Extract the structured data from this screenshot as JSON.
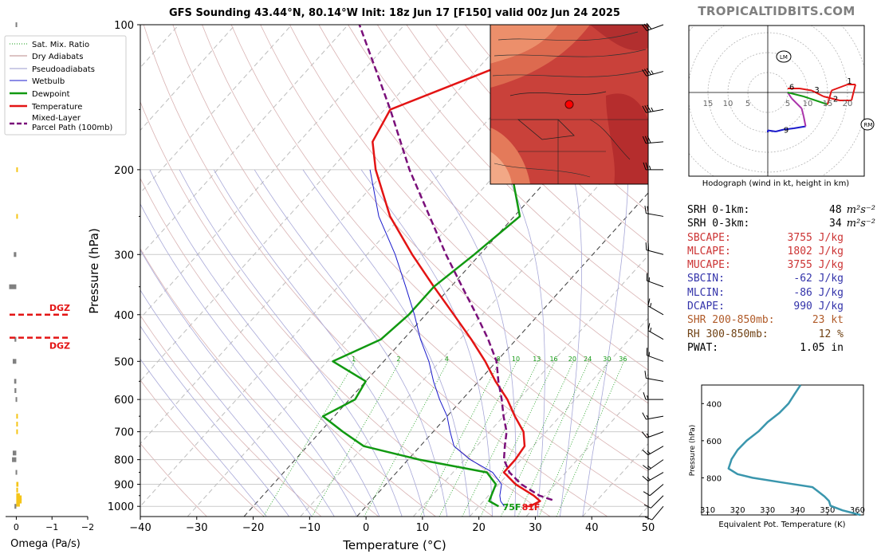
{
  "title": "GFS Sounding 43.44°N, 80.14°W Init: 18z Jun 17 [F150] valid 00z Jun 24 2025",
  "brand": "TROPICALTIDBITS.COM",
  "colors": {
    "temperature": "#e31414",
    "dewpoint": "#119911",
    "wetbulb": "#1a1acc",
    "parcel": "#7a0f7a",
    "dgz": "#e31414",
    "omega_up": "#f5c518",
    "omega_down": "#808080",
    "theta_e": "#3a96ad",
    "cape_text": "#cc3333",
    "cin_text": "#3333aa",
    "shear_text": "#b05a28",
    "rh_text": "#704214"
  },
  "chart_data": [
    {
      "type": "line",
      "name": "skew-t",
      "xlabel": "Temperature (°C)",
      "ylabel": "Pressure (hPa)",
      "xlim": [
        -40,
        50
      ],
      "ylim": [
        1050,
        100
      ],
      "y_scale": "log",
      "x_ticks": [
        -40,
        -30,
        -20,
        -10,
        0,
        10,
        20,
        30,
        40,
        50
      ],
      "y_ticks": [
        100,
        200,
        300,
        400,
        500,
        600,
        700,
        800,
        900,
        1000
      ],
      "legend_position": "top-left",
      "legend": [
        "Sat. Mix. Ratio",
        "Dry Adiabats",
        "Pseudoadiabats",
        "Wetbulb",
        "Dewpoint",
        "Temperature",
        "Mixed-Layer\nParcel Path (100mb)"
      ],
      "mixing_ratio_labels": [
        "1",
        "2",
        "4",
        "8",
        "10",
        "13",
        "16",
        "20",
        "24",
        "30",
        "36"
      ],
      "surface_labels": {
        "dewpoint": "75F",
        "temperature": "81F"
      },
      "series": [
        {
          "name": "Temperature",
          "points": [
            [
              1000,
              29
            ],
            [
              975,
              30
            ],
            [
              950,
              28
            ],
            [
              900,
              23
            ],
            [
              850,
              19
            ],
            [
              800,
              19
            ],
            [
              750,
              18.5
            ],
            [
              700,
              16
            ],
            [
              650,
              12
            ],
            [
              600,
              8
            ],
            [
              550,
              3
            ],
            [
              500,
              -2
            ],
            [
              450,
              -8
            ],
            [
              400,
              -15
            ],
            [
              350,
              -23
            ],
            [
              300,
              -32
            ],
            [
              250,
              -42
            ],
            [
              200,
              -52
            ],
            [
              175,
              -57
            ],
            [
              150,
              -59
            ],
            [
              125,
              -48
            ],
            [
              100,
              -35
            ]
          ]
        },
        {
          "name": "Dewpoint",
          "points": [
            [
              1000,
              23.5
            ],
            [
              975,
              21
            ],
            [
              950,
              20.5
            ],
            [
              925,
              20
            ],
            [
              900,
              19.5
            ],
            [
              850,
              16
            ],
            [
              800,
              2
            ],
            [
              750,
              -10
            ],
            [
              700,
              -16
            ],
            [
              650,
              -22
            ],
            [
              600,
              -19
            ],
            [
              550,
              -20
            ],
            [
              500,
              -29
            ],
            [
              450,
              -24
            ],
            [
              400,
              -23
            ],
            [
              350,
              -23
            ],
            [
              300,
              -21
            ],
            [
              250,
              -19
            ],
            [
              200,
              -28
            ],
            [
              150,
              -38
            ],
            [
              100,
              -48
            ]
          ]
        },
        {
          "name": "Wetbulb",
          "points": [
            [
              1000,
              24.5
            ],
            [
              975,
              23
            ],
            [
              950,
              22
            ],
            [
              900,
              20.5
            ],
            [
              850,
              17
            ],
            [
              800,
              11
            ],
            [
              750,
              6
            ],
            [
              700,
              3
            ],
            [
              650,
              0
            ],
            [
              600,
              -4
            ],
            [
              550,
              -8
            ],
            [
              500,
              -12
            ],
            [
              450,
              -17
            ],
            [
              400,
              -22
            ],
            [
              350,
              -28
            ],
            [
              300,
              -35
            ],
            [
              250,
              -44
            ],
            [
              200,
              -53
            ]
          ]
        },
        {
          "name": "Mixed-Layer Parcel Path (100mb)",
          "points": [
            [
              970,
              32
            ],
            [
              950,
              29
            ],
            [
              900,
              24
            ],
            [
              850,
              20
            ],
            [
              800,
              17
            ],
            [
              750,
              15
            ],
            [
              700,
              13
            ],
            [
              650,
              10
            ],
            [
              600,
              7
            ],
            [
              550,
              3.5
            ],
            [
              500,
              0
            ],
            [
              450,
              -5
            ],
            [
              400,
              -11
            ],
            [
              350,
              -18
            ],
            [
              300,
              -26
            ],
            [
              250,
              -35
            ],
            [
              200,
              -46
            ],
            [
              150,
              -59
            ],
            [
              100,
              -78
            ]
          ]
        }
      ]
    },
    {
      "type": "bar",
      "name": "omega",
      "xlabel": "Omega (Pa/s)",
      "xlim": [
        0.3,
        -2
      ],
      "x_ticks": [
        0,
        -1,
        -2
      ],
      "dgz_label": "DGZ",
      "dgz_bounds_hpa": [
        400,
        450
      ],
      "values": [
        [
          1000,
          0.05
        ],
        [
          990,
          -0.1
        ],
        [
          975,
          -0.15
        ],
        [
          960,
          -0.15
        ],
        [
          950,
          -0.1
        ],
        [
          925,
          -0.05
        ],
        [
          900,
          -0.06
        ],
        [
          850,
          0.02
        ],
        [
          800,
          0.12
        ],
        [
          775,
          0.1
        ],
        [
          700,
          -0.02
        ],
        [
          675,
          -0.04
        ],
        [
          650,
          -0.04
        ],
        [
          600,
          0.02
        ],
        [
          575,
          0.05
        ],
        [
          550,
          0.06
        ],
        [
          500,
          0.1
        ],
        [
          450,
          0.05
        ],
        [
          350,
          0.2
        ],
        [
          300,
          0.07
        ],
        [
          250,
          -0.04
        ],
        [
          200,
          -0.04
        ],
        [
          100,
          0.02
        ]
      ]
    },
    {
      "type": "line",
      "name": "hodograph",
      "xlabel": "Hodograph (wind in kt, height in km)",
      "ring_labels": [
        "15",
        "10",
        "5",
        "5",
        "10",
        "15",
        "20"
      ],
      "height_labels": [
        "1",
        "2",
        "3",
        "6",
        "9"
      ],
      "markers": {
        "LM": [
          4,
          9
        ],
        "RM": [
          25,
          -8
        ]
      },
      "points": [
        [
          0,
          -10
        ],
        [
          0,
          -9.5
        ],
        [
          2,
          -9.8
        ],
        [
          4,
          -9.3
        ],
        [
          6.5,
          -9
        ],
        [
          9.5,
          -8.5
        ],
        [
          9,
          -6
        ],
        [
          8.5,
          -4
        ],
        [
          6,
          -1.5
        ],
        [
          5,
          0
        ],
        [
          9,
          -1
        ],
        [
          12,
          -2
        ],
        [
          15,
          -3
        ],
        [
          16,
          0.5
        ],
        [
          20,
          2
        ],
        [
          22,
          2
        ],
        [
          21,
          -2
        ],
        [
          18,
          -2
        ],
        [
          14,
          -1
        ],
        [
          11,
          0.5
        ],
        [
          8,
          1
        ],
        [
          5,
          1
        ]
      ]
    },
    {
      "type": "line",
      "name": "theta-e",
      "xlabel": "Equivalent Pot. Temperature (K)",
      "ylabel": "Pressure (hPa)",
      "xlim": [
        308,
        362
      ],
      "ylim": [
        1000,
        300
      ],
      "x_ticks": [
        310,
        320,
        330,
        340,
        350,
        360
      ],
      "y_ticks": [
        400,
        600,
        800
      ],
      "points": [
        [
          1000,
          361
        ],
        [
          975,
          355
        ],
        [
          950,
          351
        ],
        [
          925,
          350.5
        ],
        [
          900,
          349
        ],
        [
          875,
          347
        ],
        [
          850,
          345
        ],
        [
          825,
          335
        ],
        [
          800,
          325
        ],
        [
          780,
          320
        ],
        [
          750,
          317
        ],
        [
          700,
          318
        ],
        [
          650,
          320
        ],
        [
          600,
          323
        ],
        [
          550,
          327
        ],
        [
          500,
          330
        ],
        [
          450,
          334
        ],
        [
          400,
          337
        ],
        [
          350,
          339
        ],
        [
          300,
          341
        ]
      ]
    }
  ],
  "stats": [
    {
      "label": "SRH 0-1km:",
      "value": "48",
      "unit": "m²s⁻²",
      "color": "#000000"
    },
    {
      "label": "SRH 0-3km:",
      "value": "34",
      "unit": "m²s⁻²",
      "color": "#000000"
    },
    {
      "label": "SBCAPE:",
      "value": "3755 J/kg",
      "unit": "",
      "color": "#cc3333"
    },
    {
      "label": "MLCAPE:",
      "value": "1802 J/kg",
      "unit": "",
      "color": "#cc3333"
    },
    {
      "label": "MUCAPE:",
      "value": "3755 J/kg",
      "unit": "",
      "color": "#cc3333"
    },
    {
      "label": "SBCIN:",
      "value": "-62 J/kg",
      "unit": "",
      "color": "#3333aa"
    },
    {
      "label": "MLCIN:",
      "value": "-86 J/kg",
      "unit": "",
      "color": "#3333aa"
    },
    {
      "label": "DCAPE:",
      "value": "990 J/kg",
      "unit": "",
      "color": "#3333aa"
    },
    {
      "label": "SHR 200-850mb:",
      "value": "23 kt",
      "unit": "",
      "color": "#b05a28"
    },
    {
      "label": "RH 300-850mb:",
      "value": "12 %",
      "unit": "",
      "color": "#704214"
    },
    {
      "label": "PWAT:",
      "value": "1.05 in",
      "unit": "",
      "color": "#000000"
    }
  ],
  "wind_barbs": [
    {
      "p": 100,
      "dir": 250,
      "kt": 30
    },
    {
      "p": 125,
      "dir": 255,
      "kt": 35
    },
    {
      "p": 150,
      "dir": 260,
      "kt": 35
    },
    {
      "p": 175,
      "dir": 265,
      "kt": 30
    },
    {
      "p": 200,
      "dir": 270,
      "kt": 25
    },
    {
      "p": 250,
      "dir": 280,
      "kt": 20
    },
    {
      "p": 300,
      "dir": 285,
      "kt": 20
    },
    {
      "p": 350,
      "dir": 290,
      "kt": 15
    },
    {
      "p": 400,
      "dir": 300,
      "kt": 15
    },
    {
      "p": 450,
      "dir": 300,
      "kt": 15
    },
    {
      "p": 500,
      "dir": 290,
      "kt": 15
    },
    {
      "p": 550,
      "dir": 280,
      "kt": 15
    },
    {
      "p": 600,
      "dir": 270,
      "kt": 15
    },
    {
      "p": 650,
      "dir": 260,
      "kt": 15
    },
    {
      "p": 700,
      "dir": 250,
      "kt": 15
    },
    {
      "p": 750,
      "dir": 240,
      "kt": 15
    },
    {
      "p": 800,
      "dir": 235,
      "kt": 15
    },
    {
      "p": 850,
      "dir": 240,
      "kt": 15
    },
    {
      "p": 900,
      "dir": 230,
      "kt": 10
    },
    {
      "p": 950,
      "dir": 225,
      "kt": 10
    },
    {
      "p": 1000,
      "dir": 220,
      "kt": 10
    }
  ]
}
